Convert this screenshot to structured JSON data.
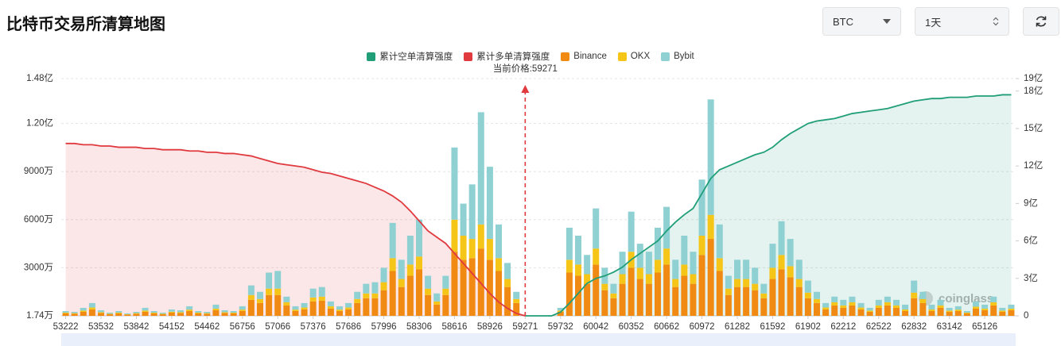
{
  "header": {
    "title": "比特币交易所清算地图"
  },
  "controls": {
    "symbol": "BTC",
    "interval": "1天"
  },
  "watermark": "coinglass",
  "chart_data": {
    "type": "bar",
    "annotation": "当前价格:59271",
    "categories": [
      "53222",
      null,
      null,
      null,
      "53532",
      null,
      null,
      null,
      "53842",
      null,
      null,
      null,
      "54152",
      null,
      null,
      null,
      "54462",
      null,
      null,
      null,
      "56756",
      null,
      null,
      null,
      "57066",
      null,
      null,
      null,
      "57376",
      null,
      null,
      null,
      "57686",
      null,
      null,
      null,
      "57996",
      null,
      null,
      null,
      "58306",
      null,
      null,
      null,
      "58616",
      null,
      null,
      null,
      "58926",
      null,
      null,
      null,
      "59271",
      null,
      null,
      null,
      "59732",
      null,
      null,
      null,
      "60042",
      null,
      null,
      null,
      "60352",
      null,
      null,
      null,
      "60662",
      null,
      null,
      null,
      "60972",
      null,
      null,
      null,
      "61282",
      null,
      null,
      null,
      "61592",
      null,
      null,
      null,
      "61902",
      null,
      null,
      null,
      "62212",
      null,
      null,
      null,
      "62522",
      null,
      null,
      null,
      "62832",
      null,
      null,
      null,
      "63142",
      null,
      null,
      null,
      "65126",
      null,
      null,
      null
    ],
    "ylim": [
      1.74,
      14800
    ],
    "yticks": [
      {
        "value": 1.74,
        "label": "1.74万"
      },
      {
        "value": 3000,
        "label": "3000万"
      },
      {
        "value": 6000,
        "label": "6000万"
      },
      {
        "value": 9000,
        "label": "9000万"
      },
      {
        "value": 12000,
        "label": "1.20亿"
      },
      {
        "value": 14800,
        "label": "1.48亿"
      }
    ],
    "y2lim": [
      0,
      19
    ],
    "y2ticks": [
      0,
      {
        "value": 3,
        "label": "3亿"
      },
      {
        "value": 6,
        "label": "6亿"
      },
      {
        "value": 9,
        "label": "9亿"
      },
      {
        "value": 12,
        "label": "12亿"
      },
      {
        "value": 15,
        "label": "15亿"
      },
      {
        "value": 18,
        "label": "18亿"
      },
      {
        "value": 19,
        "label": "19亿"
      }
    ],
    "grid": true,
    "series": [
      {
        "name": "累计空单清算强度",
        "color": "#1f9e78",
        "type": "line",
        "axis": "y2",
        "values": [
          null,
          null,
          null,
          null,
          null,
          null,
          null,
          null,
          null,
          null,
          null,
          null,
          null,
          null,
          null,
          null,
          null,
          null,
          null,
          null,
          null,
          null,
          null,
          null,
          null,
          null,
          null,
          null,
          null,
          null,
          null,
          null,
          null,
          null,
          null,
          null,
          null,
          null,
          null,
          null,
          null,
          null,
          null,
          null,
          null,
          null,
          null,
          null,
          null,
          null,
          null,
          null,
          0,
          0,
          0,
          0,
          0.3,
          1.0,
          1.8,
          2.6,
          3.0,
          3.2,
          3.5,
          3.9,
          4.5,
          5.0,
          5.5,
          6.0,
          6.8,
          7.5,
          8.1,
          8.6,
          9.8,
          11.0,
          11.7,
          12.0,
          12.3,
          12.6,
          12.9,
          13.1,
          13.5,
          14.1,
          14.6,
          15.0,
          15.4,
          15.6,
          15.7,
          15.8,
          16.0,
          16.2,
          16.3,
          16.4,
          16.5,
          16.6,
          16.8,
          17.0,
          17.2,
          17.3,
          17.4,
          17.4,
          17.5,
          17.5,
          17.5,
          17.6,
          17.6,
          17.6,
          17.7,
          17.7
        ]
      },
      {
        "name": "累计多单清算强度",
        "color": "#e0393e",
        "type": "line",
        "axis": "y2",
        "values": [
          13.8,
          13.8,
          13.7,
          13.7,
          13.6,
          13.6,
          13.5,
          13.5,
          13.5,
          13.4,
          13.4,
          13.3,
          13.3,
          13.3,
          13.2,
          13.2,
          13.1,
          13.1,
          13.0,
          13.0,
          12.9,
          12.8,
          12.6,
          12.4,
          12.2,
          12.1,
          12.0,
          11.9,
          11.7,
          11.5,
          11.4,
          11.2,
          11.0,
          10.8,
          10.6,
          10.3,
          10.0,
          9.6,
          9.1,
          8.4,
          7.6,
          6.8,
          6.3,
          5.8,
          5.0,
          4.2,
          3.4,
          2.6,
          1.8,
          1.1,
          0.6,
          0.2,
          0,
          null,
          null,
          null,
          null,
          null,
          null,
          null,
          null,
          null,
          null,
          null,
          null,
          null,
          null,
          null,
          null,
          null,
          null,
          null,
          null,
          null,
          null,
          null,
          null,
          null,
          null,
          null,
          null,
          null,
          null,
          null,
          null,
          null,
          null,
          null,
          null,
          null,
          null,
          null,
          null,
          null,
          null,
          null,
          null,
          null,
          null,
          null,
          null,
          null,
          null,
          null,
          null,
          null,
          null,
          null
        ]
      },
      {
        "name": "Binance",
        "color": "#f08a12",
        "values": [
          150,
          130,
          250,
          400,
          180,
          100,
          150,
          80,
          130,
          250,
          150,
          100,
          200,
          180,
          300,
          150,
          130,
          350,
          180,
          150,
          300,
          1000,
          800,
          1300,
          1300,
          650,
          300,
          400,
          900,
          950,
          450,
          300,
          400,
          800,
          1100,
          1100,
          1600,
          2800,
          1800,
          2500,
          2900,
          1300,
          700,
          1300,
          4000,
          3500,
          3600,
          4200,
          3500,
          2800,
          1800,
          800,
          0,
          0,
          0,
          0,
          250,
          2700,
          2500,
          2000,
          3200,
          1600,
          1100,
          2000,
          3000,
          2300,
          2000,
          2700,
          3200,
          1800,
          2500,
          2000,
          3800,
          4800,
          2800,
          1300,
          1800,
          1800,
          1600,
          1100,
          2300,
          2900,
          2400,
          1800,
          1100,
          800,
          400,
          650,
          500,
          650,
          400,
          250,
          500,
          650,
          500,
          300,
          1100,
          800,
          300,
          500,
          250,
          300,
          150,
          450,
          350,
          650,
          250,
          350
        ]
      },
      {
        "name": "OKX",
        "color": "#f5c518",
        "values": [
          50,
          40,
          80,
          120,
          50,
          30,
          50,
          20,
          40,
          80,
          50,
          30,
          60,
          50,
          90,
          50,
          40,
          100,
          50,
          50,
          90,
          300,
          250,
          400,
          400,
          200,
          90,
          120,
          250,
          250,
          150,
          90,
          120,
          250,
          300,
          300,
          500,
          800,
          500,
          700,
          800,
          400,
          200,
          400,
          2000,
          1500,
          1200,
          1500,
          1300,
          800,
          500,
          250,
          0,
          0,
          0,
          0,
          80,
          800,
          700,
          600,
          1000,
          400,
          300,
          600,
          1000,
          700,
          600,
          800,
          1000,
          500,
          700,
          600,
          1200,
          1500,
          800,
          400,
          500,
          500,
          400,
          300,
          700,
          900,
          700,
          500,
          350,
          250,
          120,
          200,
          150,
          200,
          120,
          80,
          150,
          200,
          150,
          100,
          350,
          250,
          100,
          150,
          80,
          90,
          50,
          120,
          100,
          200,
          80,
          100
        ]
      },
      {
        "name": "Bybit",
        "color": "#8fd0d3",
        "values": [
          100,
          80,
          170,
          280,
          120,
          70,
          100,
          50,
          80,
          170,
          100,
          70,
          140,
          120,
          210,
          100,
          80,
          250,
          120,
          100,
          210,
          600,
          450,
          1000,
          1100,
          350,
          210,
          280,
          550,
          600,
          300,
          210,
          280,
          450,
          600,
          700,
          900,
          2200,
          1200,
          1800,
          2300,
          800,
          500,
          800,
          4500,
          2000,
          3400,
          7000,
          4500,
          2100,
          1000,
          450,
          0,
          0,
          0,
          0,
          170,
          2000,
          1800,
          1200,
          2500,
          1000,
          600,
          1400,
          2500,
          1500,
          1400,
          2000,
          2600,
          1200,
          1800,
          1400,
          3500,
          7200,
          2100,
          800,
          1200,
          1200,
          1000,
          600,
          1500,
          2100,
          1700,
          1200,
          750,
          450,
          280,
          350,
          350,
          350,
          280,
          170,
          350,
          350,
          350,
          300,
          750,
          450,
          300,
          350,
          170,
          210,
          100,
          330,
          250,
          350,
          170,
          250
        ]
      }
    ]
  }
}
